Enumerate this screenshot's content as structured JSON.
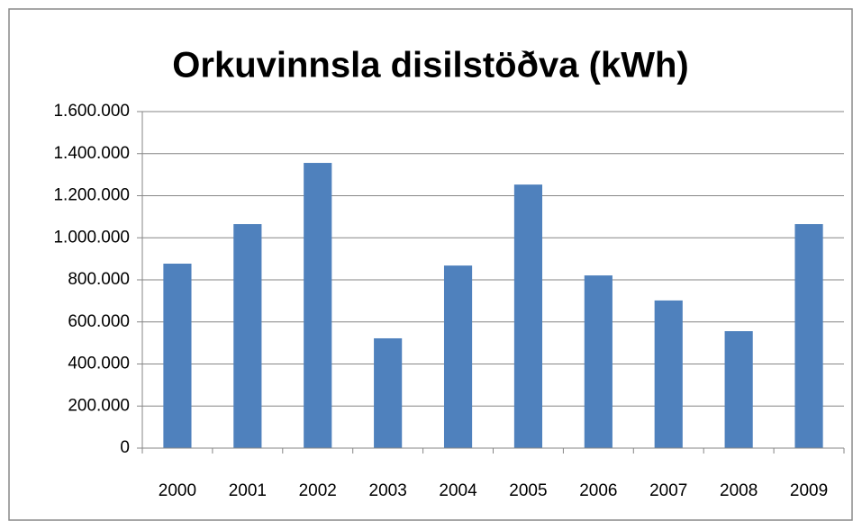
{
  "chart_data": {
    "type": "bar",
    "title": "Orkuvinnsla disilstöðva (kWh)",
    "categories": [
      "2000",
      "2001",
      "2002",
      "2003",
      "2004",
      "2005",
      "2006",
      "2007",
      "2008",
      "2009"
    ],
    "values": [
      877000,
      1065000,
      1356000,
      522000,
      868000,
      1253000,
      821000,
      702000,
      556000,
      1065000
    ],
    "color": "#4f81bd",
    "ylim": [
      0,
      1600000
    ],
    "yticks": [
      0,
      {
        "value": 200000,
        "label": "200.000"
      },
      {
        "value": 400000,
        "label": "400.000"
      },
      {
        "value": 600000,
        "label": "600.000"
      },
      {
        "value": 800000,
        "label": "800.000"
      },
      {
        "value": 1000000,
        "label": "1.000.000"
      },
      {
        "value": 1200000,
        "label": "1.200.000"
      },
      {
        "value": 1400000,
        "label": "1.400.000"
      },
      {
        "value": 1600000,
        "label": "1.600.000"
      }
    ],
    "grid": true
  }
}
